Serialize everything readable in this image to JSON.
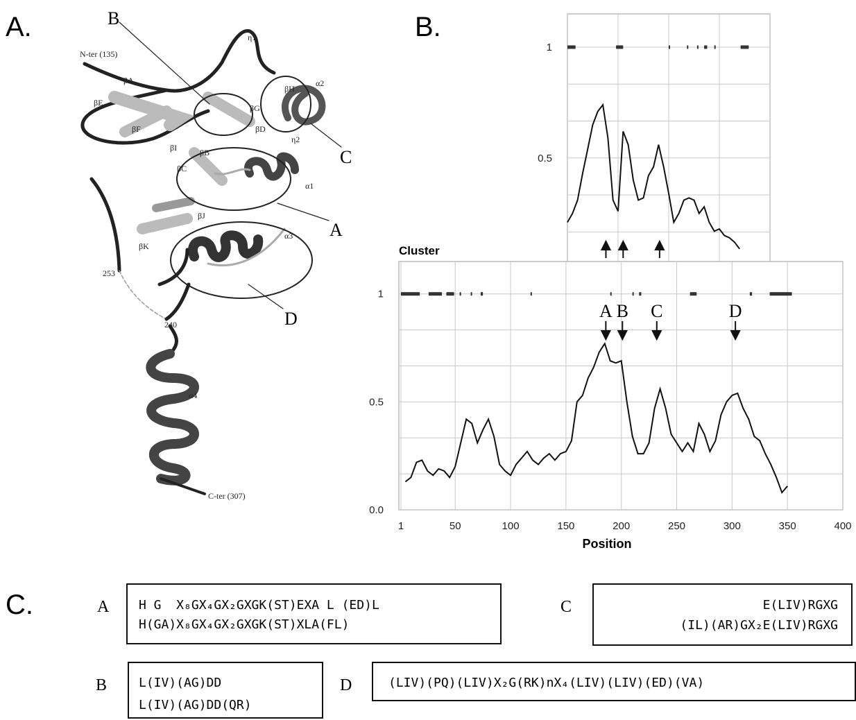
{
  "panels": {
    "a": "A.",
    "b": "B.",
    "c": "C."
  },
  "structure": {
    "labels": [
      "η1",
      "N-ter (135)",
      "βA",
      "βE",
      "βG",
      "βH",
      "α2",
      "βD",
      "η2",
      "βF",
      "βI",
      "βB",
      "βC",
      "α1",
      "βJ",
      "α3",
      "βK",
      "253",
      "240",
      "α4",
      "C-ter (307)"
    ],
    "callouts": [
      "B",
      "C",
      "A",
      "D"
    ]
  },
  "chart_data": [
    {
      "type": "line",
      "x": [
        150,
        155,
        160,
        165,
        170,
        175,
        180,
        185,
        190,
        195,
        200,
        205,
        210,
        215,
        220,
        225,
        230,
        235,
        240,
        245,
        250,
        255,
        260,
        265,
        270,
        275,
        280,
        285,
        290,
        295,
        300,
        305,
        310,
        315,
        320
      ],
      "values": [
        0.21,
        0.25,
        0.31,
        0.43,
        0.54,
        0.65,
        0.71,
        0.74,
        0.59,
        0.31,
        0.26,
        0.62,
        0.56,
        0.4,
        0.31,
        0.32,
        0.42,
        0.46,
        0.56,
        0.46,
        0.34,
        0.21,
        0.25,
        0.31,
        0.32,
        0.31,
        0.25,
        0.28,
        0.21,
        0.17,
        0.18,
        0.15,
        0.14,
        0.12,
        0.09
      ],
      "color": "#111111",
      "xlim": [
        150,
        350
      ],
      "xgrid": [
        150,
        200,
        250,
        300,
        350
      ],
      "ylim": [
        0.03,
        1.15
      ],
      "yticks": [
        0.5,
        1
      ],
      "minor_grid": 3,
      "cluster_segments": [
        [
          150,
          158
        ],
        [
          198,
          205
        ],
        [
          250,
          251
        ],
        [
          268,
          269
        ],
        [
          278,
          279
        ],
        [
          285,
          288
        ],
        [
          295,
          296
        ],
        [
          321,
          329
        ]
      ],
      "arrows_x": [
        188,
        205,
        241
      ]
    },
    {
      "type": "line",
      "title": "Cluster",
      "xlabel": "Position",
      "x": [
        5,
        10,
        15,
        20,
        25,
        30,
        35,
        40,
        45,
        50,
        55,
        60,
        65,
        70,
        75,
        80,
        85,
        90,
        95,
        100,
        105,
        110,
        115,
        120,
        125,
        130,
        135,
        140,
        145,
        150,
        155,
        160,
        165,
        170,
        175,
        180,
        185,
        190,
        195,
        200,
        205,
        210,
        215,
        220,
        225,
        230,
        235,
        240,
        245,
        250,
        255,
        260,
        265,
        270,
        275,
        280,
        285,
        290,
        295,
        300,
        305,
        310,
        315,
        320,
        325,
        330,
        335,
        340,
        345,
        350
      ],
      "values": [
        0.13,
        0.15,
        0.22,
        0.23,
        0.18,
        0.16,
        0.19,
        0.18,
        0.15,
        0.2,
        0.31,
        0.42,
        0.4,
        0.31,
        0.37,
        0.42,
        0.34,
        0.21,
        0.18,
        0.16,
        0.21,
        0.24,
        0.27,
        0.23,
        0.21,
        0.24,
        0.26,
        0.23,
        0.26,
        0.27,
        0.32,
        0.5,
        0.53,
        0.61,
        0.66,
        0.73,
        0.77,
        0.69,
        0.68,
        0.69,
        0.5,
        0.34,
        0.26,
        0.26,
        0.31,
        0.47,
        0.56,
        0.47,
        0.35,
        0.31,
        0.27,
        0.31,
        0.27,
        0.4,
        0.35,
        0.27,
        0.32,
        0.44,
        0.5,
        0.53,
        0.54,
        0.47,
        0.42,
        0.34,
        0.32,
        0.26,
        0.21,
        0.15,
        0.08,
        0.11
      ],
      "color": "#111111",
      "xlim": [
        1,
        400
      ],
      "xticks": [
        1,
        50,
        100,
        150,
        200,
        250,
        300,
        350,
        400
      ],
      "ylim": [
        0,
        1.15
      ],
      "yticks": [
        {
          "value": 0,
          "label": "0.0"
        },
        0.5,
        1
      ],
      "minor_grid": 3,
      "cluster_segments": [
        [
          1,
          18
        ],
        [
          26,
          38
        ],
        [
          42,
          49
        ],
        [
          54,
          55
        ],
        [
          64,
          65
        ],
        [
          73,
          75
        ],
        [
          118,
          119
        ],
        [
          190,
          191
        ],
        [
          210,
          211
        ],
        [
          216,
          218
        ],
        [
          262,
          268
        ],
        [
          316,
          318
        ],
        [
          334,
          354
        ]
      ],
      "arrows": [
        {
          "label": "A",
          "x": 186
        },
        {
          "label": "B",
          "x": 201
        },
        {
          "label": "C",
          "x": 232
        },
        {
          "label": "D",
          "x": 303
        }
      ]
    }
  ],
  "motifs": [
    {
      "label": "A",
      "lines": [
        "H G  X₈GX₄GX₂GXGK(ST)EXA L (ED)L",
        "H(GA)X₈GX₄GX₂GXGK(ST)XLA(FL)"
      ]
    },
    {
      "label": "C",
      "lines": [
        "E(LIV)RGXG",
        "(IL)(AR)GX₂E(LIV)RGXG"
      ]
    },
    {
      "label": "B",
      "lines": [
        "L(IV)(AG)DD",
        "L(IV)(AG)DD(QR)"
      ]
    },
    {
      "label": "D",
      "lines": [
        "(LIV)(PQ)(LIV)X₂G(RK)nX₄(LIV)(LIV)(ED)(VA)"
      ]
    }
  ]
}
